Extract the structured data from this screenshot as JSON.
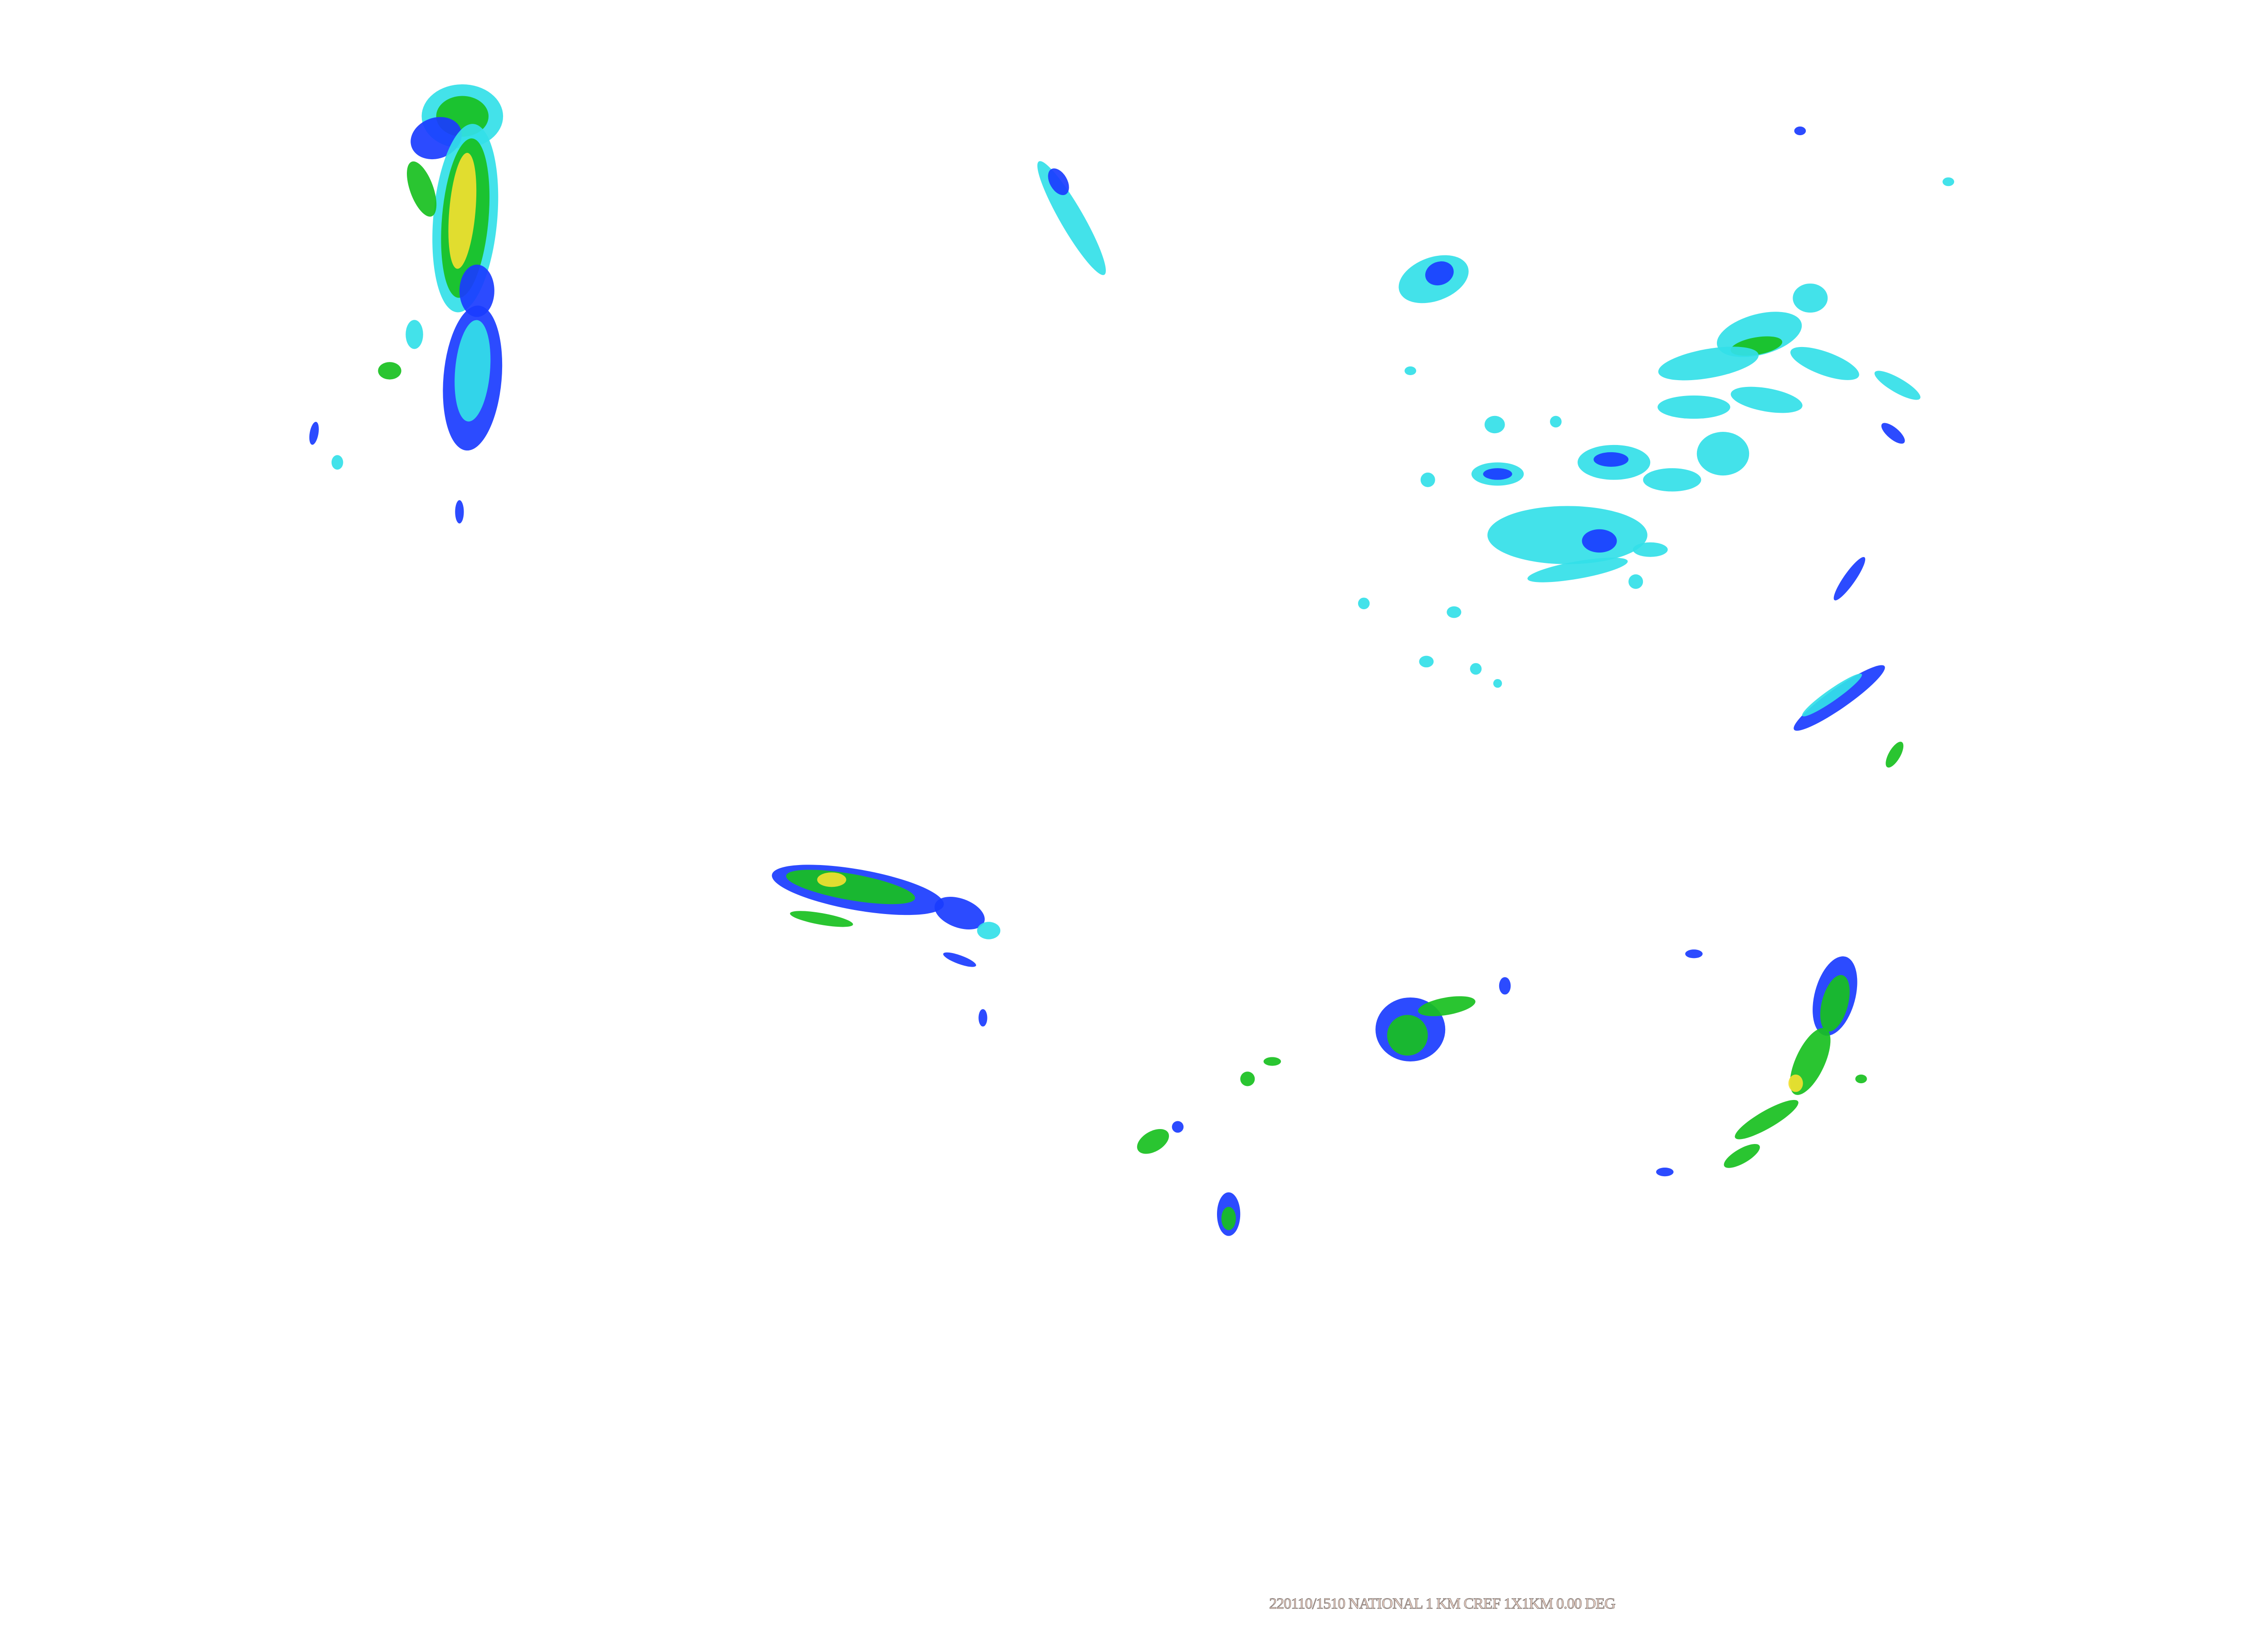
{
  "caption": "220110/1510 NATIONAL 1 KM CREF 1X1KM 0.00 DEG",
  "colors": {
    "background": "#ffffff",
    "light_echo": "#33e0e8",
    "moderate_echo": "#1a3cff",
    "strong_echo": "#18c020",
    "heavy_echo": "#f2e030"
  }
}
